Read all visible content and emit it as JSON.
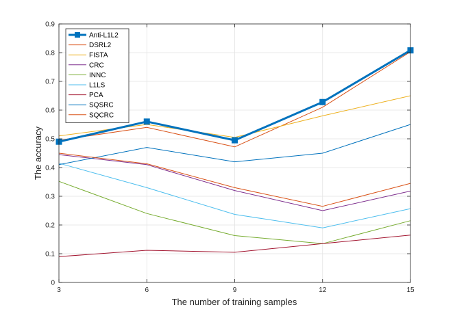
{
  "chart_data": {
    "type": "line",
    "xlabel": "The number of training samples",
    "ylabel": "The accuracy",
    "x": [
      3,
      6,
      9,
      12,
      15
    ],
    "xlim": [
      3,
      15
    ],
    "ylim": [
      0,
      0.9
    ],
    "xticks": [
      "3",
      "6",
      "9",
      "12",
      "15"
    ],
    "yticks": [
      "0",
      "0.1",
      "0.2",
      "0.3",
      "0.4",
      "0.5",
      "0.6",
      "0.7",
      "0.8",
      "0.9"
    ],
    "grid": true,
    "legend_position": "top-left",
    "series": [
      {
        "name": "Anti-L1L2",
        "color": "#0072BD",
        "marker": "square",
        "emphasis": true,
        "values": [
          0.49,
          0.56,
          0.495,
          0.628,
          0.808
        ]
      },
      {
        "name": "DSRL2",
        "color": "#D95319",
        "values": [
          0.495,
          0.54,
          0.472,
          0.61,
          0.803
        ]
      },
      {
        "name": "FISTA",
        "color": "#EDB120",
        "values": [
          0.51,
          0.55,
          0.505,
          0.58,
          0.65
        ]
      },
      {
        "name": "CRC",
        "color": "#7E2F8E",
        "values": [
          0.445,
          0.41,
          0.32,
          0.25,
          0.318
        ]
      },
      {
        "name": "INNC",
        "color": "#77AC30",
        "values": [
          0.352,
          0.24,
          0.163,
          0.135,
          0.215
        ]
      },
      {
        "name": "L1LS",
        "color": "#4DBEEE",
        "values": [
          0.415,
          0.33,
          0.237,
          0.19,
          0.257
        ]
      },
      {
        "name": "PCA",
        "color": "#A2142F",
        "values": [
          0.09,
          0.112,
          0.105,
          0.135,
          0.165
        ]
      },
      {
        "name": "SQSRC",
        "color": "#0072BD",
        "values": [
          0.41,
          0.47,
          0.42,
          0.45,
          0.55
        ]
      },
      {
        "name": "SQCRC",
        "color": "#D95319",
        "values": [
          0.45,
          0.413,
          0.33,
          0.265,
          0.345
        ]
      }
    ]
  }
}
